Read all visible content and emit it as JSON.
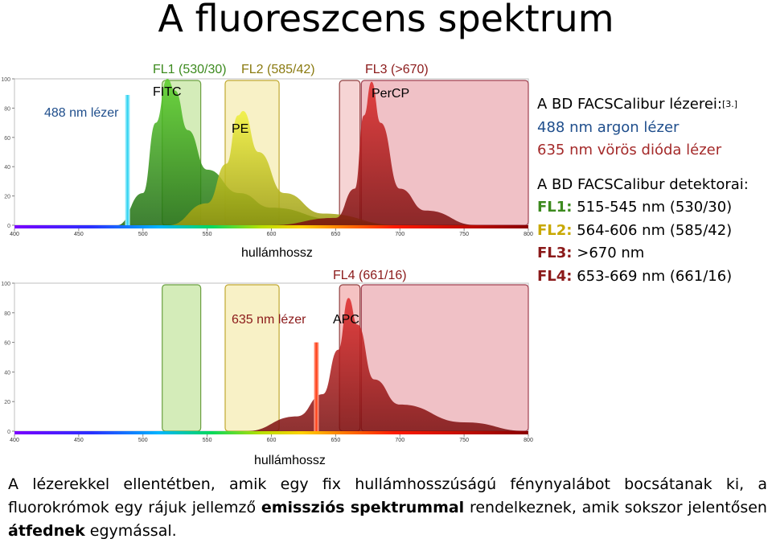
{
  "title": "A fluoreszcens spektrum",
  "top_chart": {
    "filter_labels": {
      "fl1": "FL1 (530/30)",
      "fl2": "FL2 (585/42)",
      "fl3": "FL3 (>670)"
    },
    "laser_label": "488 nm lézer",
    "dyes": [
      "FITC",
      "PE",
      "PerCP"
    ],
    "xlabel": "hullámhossz"
  },
  "bottom_chart": {
    "filter_label": "FL4 (661/16)",
    "laser_label": "635 nm lézer",
    "dye": "APC",
    "xlabel": "hullámhossz"
  },
  "chart_data": [
    {
      "type": "area",
      "x_ticks": [
        400,
        450,
        500,
        550,
        600,
        650,
        700,
        750,
        800
      ],
      "y_ticks": [
        0,
        20,
        40,
        60,
        80,
        100
      ],
      "xlim": [
        400,
        800
      ],
      "ylim": [
        0,
        100
      ],
      "xlabel": "hullámhossz",
      "series": [
        {
          "name": "FITC",
          "x": [
            480,
            500,
            510,
            519,
            525,
            535,
            550,
            575,
            600,
            650,
            700
          ],
          "y": [
            0,
            22,
            70,
            100,
            92,
            65,
            38,
            22,
            12,
            4,
            0
          ]
        },
        {
          "name": "PE",
          "x": [
            520,
            550,
            565,
            574,
            578,
            590,
            610,
            640,
            700
          ],
          "y": [
            0,
            15,
            42,
            75,
            78,
            50,
            22,
            8,
            0
          ]
        },
        {
          "name": "PerCP",
          "x": [
            600,
            650,
            665,
            672,
            678,
            685,
            700,
            720,
            760
          ],
          "y": [
            0,
            5,
            25,
            75,
            98,
            70,
            25,
            10,
            0
          ]
        }
      ],
      "lasers": [
        {
          "name": "488 nm lézer",
          "nm": 488
        }
      ],
      "filters": [
        {
          "name": "FL1 (530/30)",
          "from": 515,
          "to": 545
        },
        {
          "name": "FL2 (585/42)",
          "from": 564,
          "to": 606
        },
        {
          "name": "FL3 (>670)",
          "from": 670,
          "to": 800
        },
        {
          "name": "FL4",
          "from": 653,
          "to": 669
        }
      ]
    },
    {
      "type": "area",
      "x_ticks": [
        400,
        450,
        500,
        550,
        600,
        650,
        700,
        750,
        800
      ],
      "y_ticks": [
        0,
        20,
        40,
        60,
        80,
        100
      ],
      "xlim": [
        400,
        800
      ],
      "ylim": [
        0,
        100
      ],
      "xlabel": "hullámhossz",
      "series": [
        {
          "name": "APC",
          "x": [
            580,
            620,
            640,
            652,
            660,
            667,
            680,
            700,
            750,
            800
          ],
          "y": [
            0,
            10,
            25,
            55,
            90,
            72,
            35,
            18,
            6,
            0
          ]
        }
      ],
      "lasers": [
        {
          "name": "635 nm lézer",
          "nm": 635
        }
      ],
      "filters": [
        {
          "name": "FL1 (530/30)",
          "from": 515,
          "to": 545
        },
        {
          "name": "FL2 (585/42)",
          "from": 564,
          "to": 606
        },
        {
          "name": "FL4 (661/16)",
          "from": 653,
          "to": 669
        },
        {
          "name": "FL3 (>670)",
          "from": 670,
          "to": 800
        }
      ]
    }
  ],
  "right_panel": {
    "lasers_heading": "A BD FACSCalibur lézerei:",
    "lasers_ref": "[3.]",
    "laser1": "488 nm argon lézer",
    "laser2": "635 nm vörös dióda lézer",
    "detectors_heading": "A BD FACSCalibur detektorai:",
    "detectors": [
      {
        "key": "FL1:",
        "value": "515-545 nm (530/30)",
        "color": "#3c8a1e"
      },
      {
        "key": "FL2:",
        "value": "564-606 nm (585/42)",
        "color": "#c8a800"
      },
      {
        "key": "FL3:",
        "value": ">670 nm",
        "color": "#8b1a1a"
      },
      {
        "key": "FL4:",
        "value": "653-669 nm (661/16)",
        "color": "#8b1a1a"
      }
    ]
  },
  "paragraph": {
    "part1": "A lézerekkel ellentétben, amik egy fix hullámhosszúságú fénynyalábot bocsátanak ki, a fluorokrómok egy rájuk jellemző",
    "bold1": "emissziós spektrummal",
    "part2": "rendelkeznek, amik sokszor jelentősen",
    "bold2": "átfednek",
    "part3": "egymással."
  }
}
